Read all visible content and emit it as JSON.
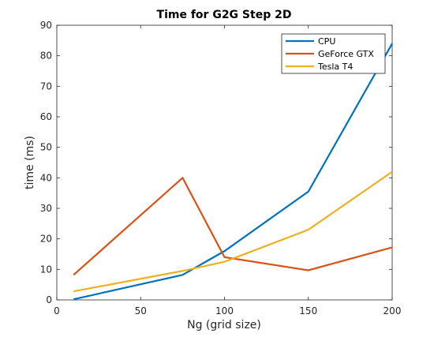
{
  "chart_data": {
    "type": "line",
    "title": "Time for G2G Step 2D",
    "xlabel": "Ng (grid size)",
    "ylabel": "time (ms)",
    "xlim": [
      0,
      200
    ],
    "ylim": [
      0,
      90
    ],
    "xticks": [
      0,
      50,
      100,
      150,
      200
    ],
    "yticks": [
      0,
      10,
      20,
      30,
      40,
      50,
      60,
      70,
      80,
      90
    ],
    "grid": false,
    "legend_position": "top-right",
    "x": [
      10,
      75,
      100,
      150,
      200
    ],
    "series": [
      {
        "name": "CPU",
        "color": "#0072BD",
        "values": [
          0.2,
          8.2,
          16.0,
          35.5,
          84.0
        ]
      },
      {
        "name": "GeForce GTX",
        "color": "#D95319",
        "values": [
          8.2,
          40.0,
          14.0,
          9.7,
          17.2
        ]
      },
      {
        "name": "Tesla T4",
        "color": "#EDB120",
        "values": [
          2.8,
          9.5,
          12.5,
          23.0,
          42.0
        ]
      }
    ]
  }
}
